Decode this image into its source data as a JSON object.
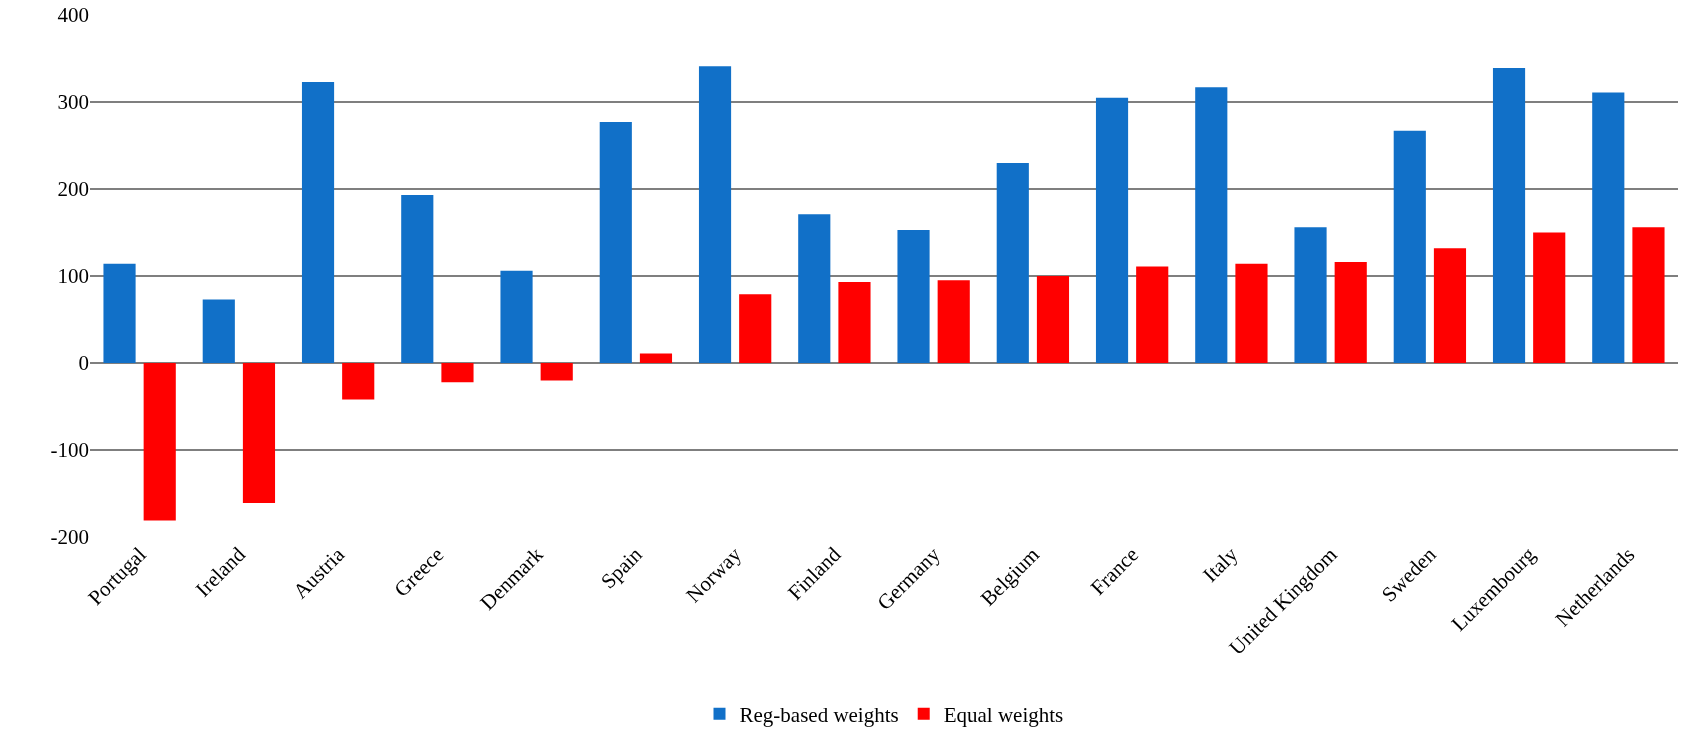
{
  "chart_data": {
    "type": "bar",
    "categories": [
      "Portugal",
      "Ireland",
      "Austria",
      "Greece",
      "Denmark",
      "Spain",
      "Norway",
      "Finland",
      "Germany",
      "Belgium",
      "France",
      "Italy",
      "United Kingdom",
      "Sweden",
      "Luxembourg",
      "Netherlands"
    ],
    "series": [
      {
        "name": "Reg-based weights",
        "color": "#1170c8",
        "values": [
          114,
          73,
          323,
          193,
          106,
          277,
          341,
          171,
          153,
          230,
          305,
          317,
          156,
          267,
          339,
          311
        ]
      },
      {
        "name": "Equal weights",
        "color": "#ff0000",
        "values": [
          -181,
          -161,
          -42,
          -22,
          -20,
          11,
          79,
          93,
          95,
          100,
          111,
          114,
          116,
          132,
          150,
          156
        ]
      }
    ],
    "ylim": [
      -200,
      400
    ],
    "yticks": [
      -200,
      -100,
      0,
      100,
      200,
      300,
      400
    ],
    "grid": "y",
    "legend": "bottom"
  }
}
